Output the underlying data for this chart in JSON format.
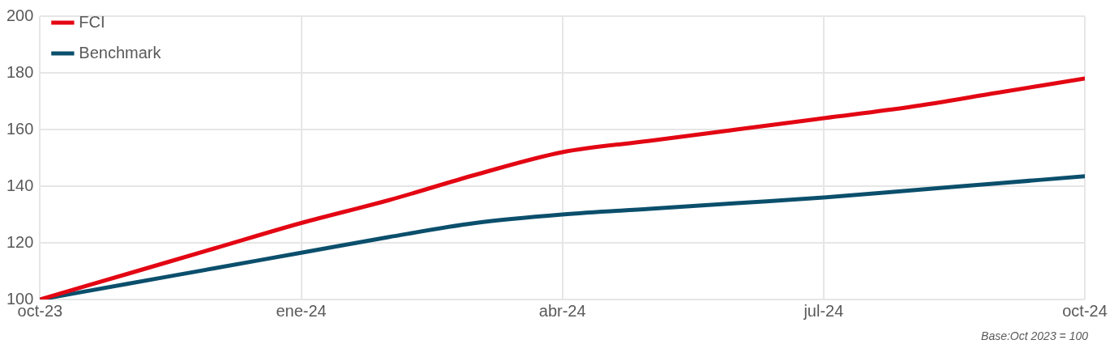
{
  "chart_data": {
    "type": "line",
    "x": [
      "2023-10",
      "2023-11",
      "2023-12",
      "2024-01",
      "2024-02",
      "2024-03",
      "2024-04",
      "2024-05",
      "2024-06",
      "2024-07",
      "2024-08",
      "2024-09",
      "2024-10"
    ],
    "series": [
      {
        "name": "FCI",
        "color": "#e30613",
        "values": [
          100,
          109,
          118,
          127,
          135,
          144,
          152,
          156,
          160,
          164,
          168,
          173,
          178
        ]
      },
      {
        "name": "Benchmark",
        "color": "#0b4f6c",
        "values": [
          100,
          105.5,
          111,
          116.5,
          122,
          127,
          130,
          132,
          134,
          136,
          138.5,
          141,
          143.5
        ]
      }
    ],
    "xlim": [
      "2023-10",
      "2024-10"
    ],
    "xticks": [
      {
        "value": "2023-10",
        "label": "oct-23"
      },
      {
        "value": "2024-01",
        "label": "ene-24"
      },
      {
        "value": "2024-04",
        "label": "abr-24"
      },
      {
        "value": "2024-07",
        "label": "jul-24"
      },
      {
        "value": "2024-10",
        "label": "oct-24"
      }
    ],
    "ylim": [
      100,
      200
    ],
    "yticks": [
      100,
      120,
      140,
      160,
      180,
      200
    ],
    "grid": true,
    "legend": "top left",
    "marker": "none",
    "line_style": "solid",
    "annotations": [
      "Base:Oct 2023 = 100"
    ]
  }
}
